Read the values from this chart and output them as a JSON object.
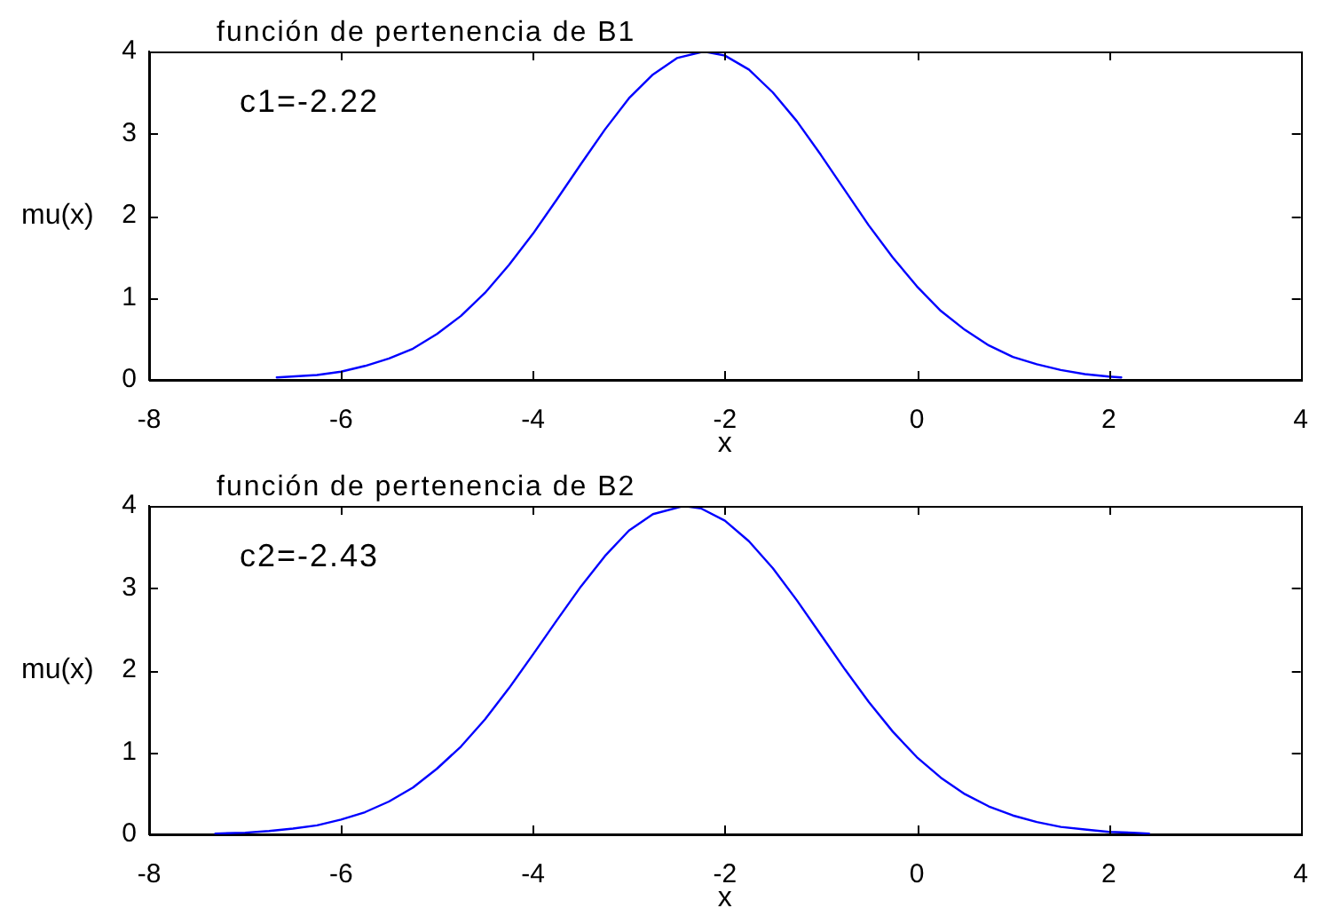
{
  "chart_data": [
    {
      "type": "line",
      "title": "función de pertenencia de B1",
      "xlabel": "x",
      "ylabel": "mu(x)",
      "annotations": [
        "c1=-2.22"
      ],
      "series": [
        {
          "color": "#0000ff",
          "x": [
            -6.67,
            -6.25,
            -6,
            -5.75,
            -5.5,
            -5.25,
            -5,
            -4.75,
            -4.5,
            -4.25,
            -4,
            -3.75,
            -3.5,
            -3.25,
            -3,
            -2.75,
            -2.5,
            -2.22,
            -2,
            -1.75,
            -1.5,
            -1.25,
            -1,
            -0.75,
            -0.5,
            -0.25,
            0,
            0.25,
            0.5,
            0.75,
            1,
            1.25,
            1.5,
            1.75,
            2,
            2.13
          ],
          "values": [
            0.03,
            0.06,
            0.1,
            0.17,
            0.26,
            0.38,
            0.56,
            0.78,
            1.06,
            1.4,
            1.78,
            2.2,
            2.63,
            3.05,
            3.43,
            3.72,
            3.92,
            4,
            3.95,
            3.78,
            3.5,
            3.15,
            2.74,
            2.31,
            1.88,
            1.49,
            1.14,
            0.84,
            0.61,
            0.42,
            0.28,
            0.19,
            0.12,
            0.07,
            0.04,
            0.03
          ]
        }
      ],
      "xlim": [
        -8,
        4
      ],
      "xticks": [
        -8,
        -6,
        -4,
        -2,
        0,
        2,
        4
      ],
      "ylim": [
        0,
        4
      ],
      "yticks": [
        0,
        1,
        2,
        3,
        4
      ],
      "grid": false,
      "legend": false,
      "marker": "none",
      "line_style": "solid"
    },
    {
      "type": "line",
      "title": "función de pertenencia de B2",
      "xlabel": "x",
      "ylabel": "mu(x)",
      "annotations": [
        "c2=-2.43"
      ],
      "series": [
        {
          "color": "#0000ff",
          "x": [
            -7.31,
            -7,
            -6.75,
            -6.5,
            -6.25,
            -6,
            -5.75,
            -5.5,
            -5.25,
            -5,
            -4.75,
            -4.5,
            -4.25,
            -4,
            -3.75,
            -3.5,
            -3.25,
            -3,
            -2.75,
            -2.43,
            -2.25,
            -2,
            -1.75,
            -1.5,
            -1.25,
            -1,
            -0.75,
            -0.5,
            -0.25,
            0,
            0.25,
            0.5,
            0.75,
            1,
            1.25,
            1.5,
            1.75,
            2,
            2.25,
            2.42
          ],
          "values": [
            0.01,
            0.02,
            0.04,
            0.07,
            0.11,
            0.18,
            0.27,
            0.4,
            0.57,
            0.8,
            1.07,
            1.4,
            1.78,
            2.19,
            2.61,
            3.02,
            3.39,
            3.7,
            3.9,
            4,
            3.97,
            3.82,
            3.57,
            3.24,
            2.85,
            2.43,
            2.01,
            1.61,
            1.25,
            0.94,
            0.69,
            0.49,
            0.34,
            0.23,
            0.15,
            0.09,
            0.06,
            0.03,
            0.02,
            0.01
          ]
        }
      ],
      "xlim": [
        -8,
        4
      ],
      "xticks": [
        -8,
        -6,
        -4,
        -2,
        0,
        2,
        4
      ],
      "ylim": [
        0,
        4
      ],
      "yticks": [
        0,
        1,
        2,
        3,
        4
      ],
      "grid": false,
      "legend": false,
      "marker": "none",
      "line_style": "solid"
    }
  ]
}
